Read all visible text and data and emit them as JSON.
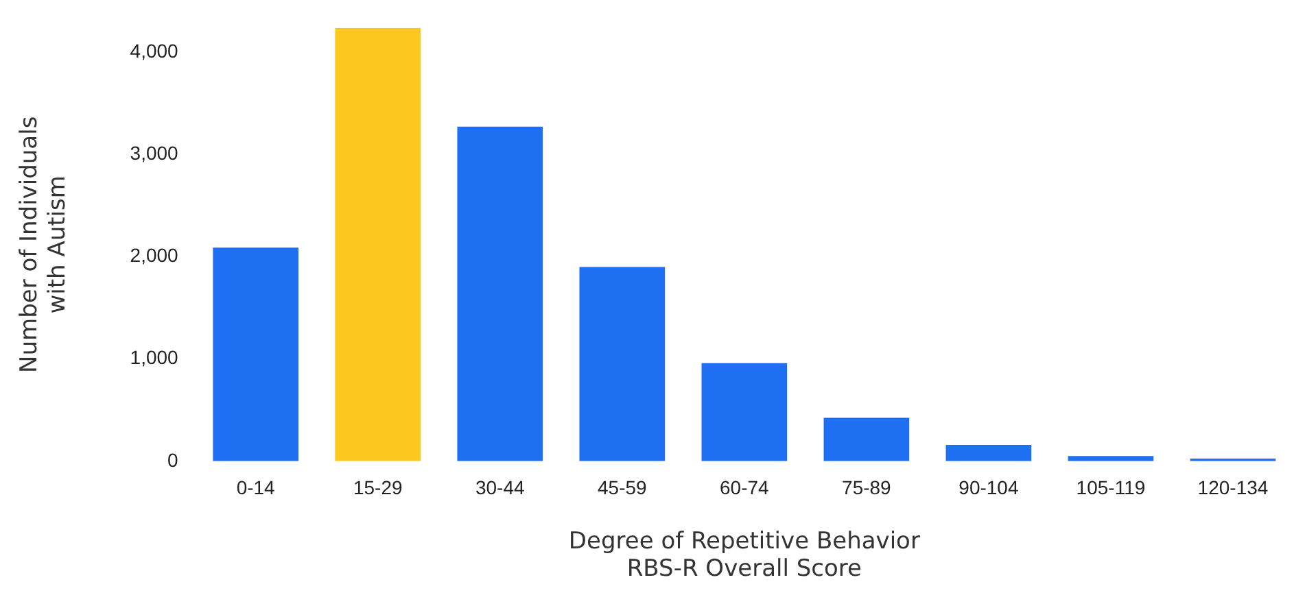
{
  "chart_data": {
    "type": "bar",
    "xlabel": "Degree of Repetitive Behavior\nRBS-R Overall Score",
    "ylabel": "Number of Individuals\nwith Autism",
    "categories": [
      "0-14",
      "15-29",
      "30-44",
      "45-59",
      "60-74",
      "75-89",
      "90-104",
      "105-119",
      "120-134"
    ],
    "values": [
      2090,
      4240,
      3275,
      1900,
      960,
      425,
      160,
      50,
      25
    ],
    "colors": [
      "#1f6ff2",
      "#fcc81e",
      "#1f6ff2",
      "#1f6ff2",
      "#1f6ff2",
      "#1f6ff2",
      "#1f6ff2",
      "#1f6ff2",
      "#1f6ff2"
    ],
    "ylim": [
      0,
      4240
    ],
    "yticks": [
      {
        "value": 0,
        "label": "0"
      },
      {
        "value": 1000,
        "label": "1,000"
      },
      {
        "value": 2000,
        "label": "2,000"
      },
      {
        "value": 3000,
        "label": "3,000"
      },
      {
        "value": 4000,
        "label": "4,000"
      }
    ],
    "grid": false,
    "legend": false
  }
}
